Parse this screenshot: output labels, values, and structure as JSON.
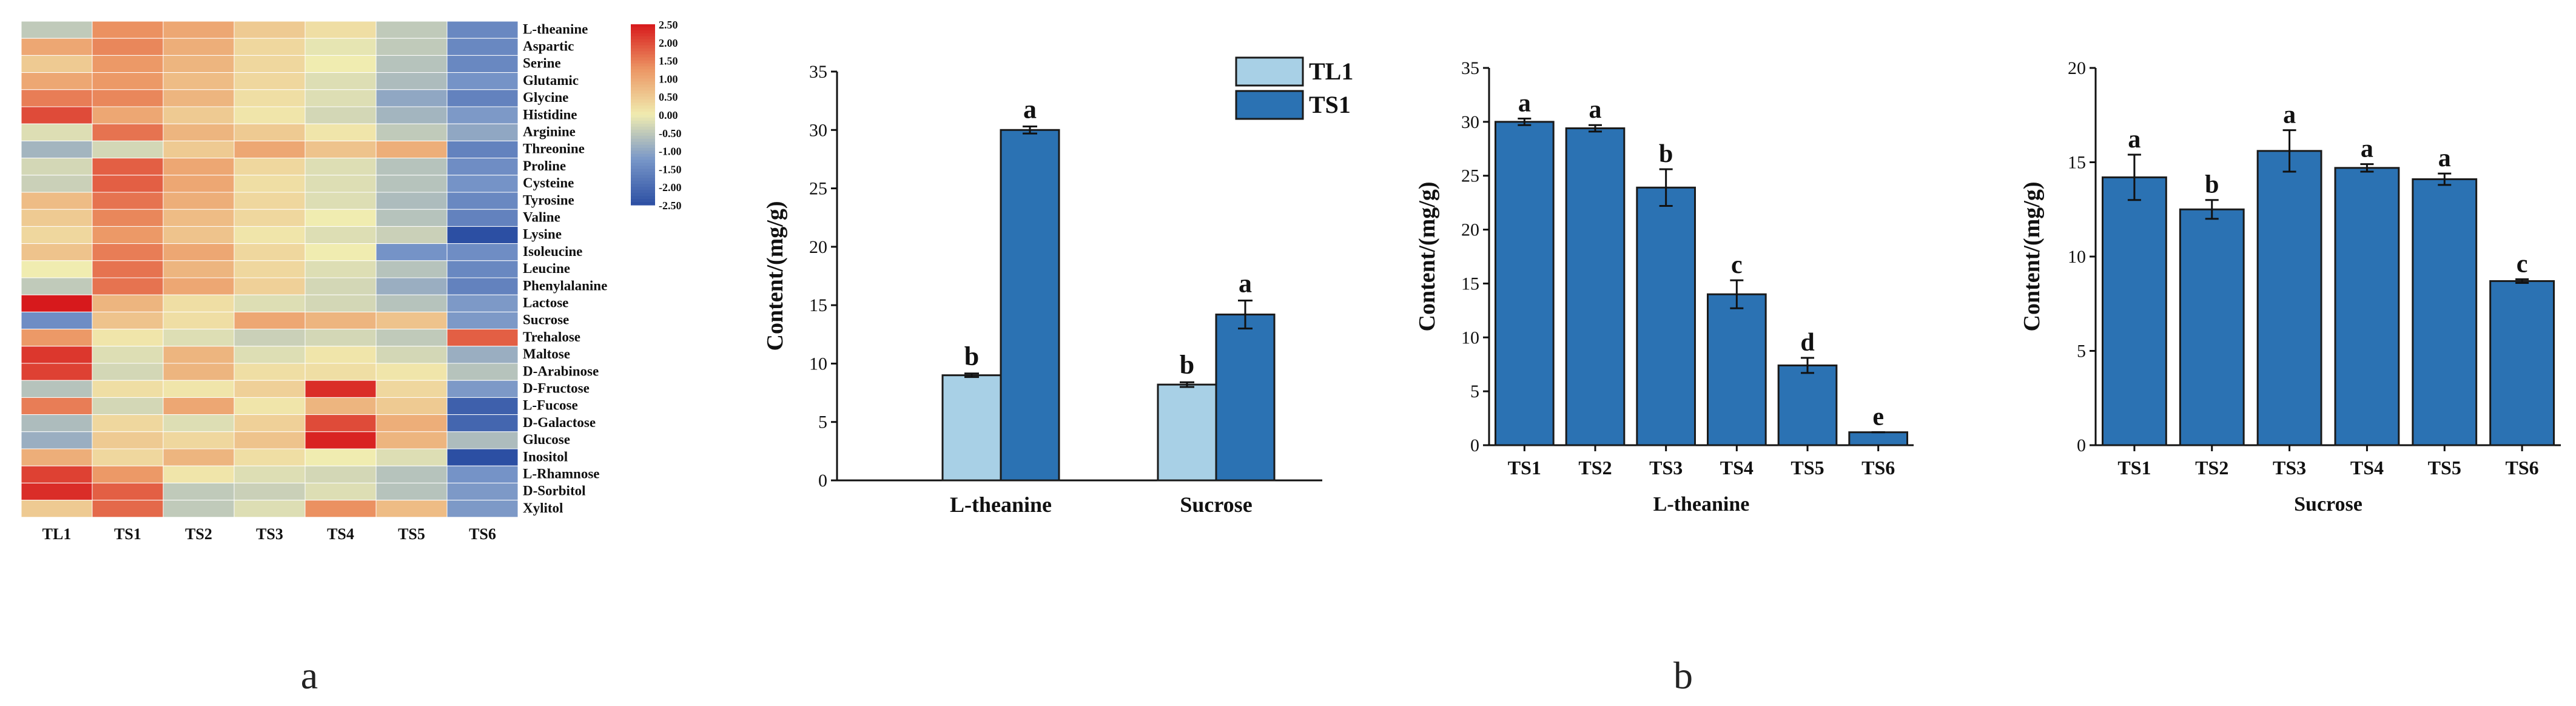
{
  "panel_labels": {
    "a": "a",
    "b": "b"
  },
  "colors": {
    "tl1": "#a8d0e6",
    "ts": "#2b72b3",
    "edge": "#1a1a1a",
    "heat_high": "#d7191c",
    "heat_mid": "#f0ecb0",
    "heat_low": "#2c4fa3"
  },
  "chart_data": [
    {
      "type": "heatmap",
      "columns": [
        "TL1",
        "TS1",
        "TS2",
        "TS3",
        "TS4",
        "TS5",
        "TS6"
      ],
      "rows": [
        "L-theanine",
        "Aspartic",
        "Serine",
        "Glutamic",
        "Glycine",
        "Histidine",
        "Arginine",
        "Threonine",
        "Proline",
        "Cysteine",
        "Tyrosine",
        "Valine",
        "Lysine",
        "Isoleucine",
        "Leucine",
        "Phenylalanine",
        "Lactose",
        "Sucrose",
        "Trehalose",
        "Maltose",
        "D-Arabinose",
        "D-Fructose",
        "L-Fucose",
        "D-Galactose",
        "Glucose",
        "Inositol",
        "L-Rhamnose",
        "D-Sorbitol",
        "Xylitol"
      ],
      "values": [
        [
          -0.5,
          1.3,
          1.0,
          0.5,
          0.2,
          -0.5,
          -1.5
        ],
        [
          1.0,
          1.4,
          0.9,
          0.3,
          -0.1,
          -0.5,
          -1.5
        ],
        [
          0.5,
          1.2,
          0.8,
          0.3,
          0.0,
          -0.6,
          -1.5
        ],
        [
          1.0,
          1.2,
          0.7,
          0.3,
          -0.2,
          -0.7,
          -1.3
        ],
        [
          1.5,
          1.4,
          0.8,
          0.2,
          -0.2,
          -1.0,
          -1.6
        ],
        [
          2.0,
          1.0,
          0.5,
          0.1,
          -0.3,
          -0.8,
          -1.2
        ],
        [
          -0.2,
          1.6,
          0.8,
          0.5,
          0.1,
          -0.5,
          -1.0
        ],
        [
          -0.8,
          -0.3,
          0.5,
          1.0,
          0.6,
          0.9,
          -1.6
        ],
        [
          -0.3,
          1.8,
          1.0,
          0.3,
          -0.2,
          -0.6,
          -1.4
        ],
        [
          -0.4,
          1.8,
          1.0,
          0.2,
          -0.2,
          -0.6,
          -1.3
        ],
        [
          0.7,
          1.6,
          0.9,
          0.3,
          -0.2,
          -0.7,
          -1.5
        ],
        [
          0.5,
          1.4,
          0.7,
          0.3,
          0.0,
          -0.6,
          -1.6
        ],
        [
          0.3,
          1.2,
          0.6,
          0.1,
          -0.2,
          -0.4,
          -2.5
        ],
        [
          0.6,
          1.5,
          1.0,
          0.3,
          0.0,
          -1.3,
          -1.4
        ],
        [
          0.0,
          1.6,
          0.8,
          0.3,
          -0.2,
          -0.6,
          -1.5
        ],
        [
          -0.5,
          1.6,
          1.0,
          0.4,
          -0.3,
          -0.9,
          -1.6
        ],
        [
          2.5,
          0.8,
          0.2,
          -0.2,
          -0.3,
          -0.6,
          -1.2
        ],
        [
          -1.4,
          0.6,
          0.2,
          1.0,
          0.8,
          0.6,
          -1.2
        ],
        [
          1.2,
          0.1,
          -0.2,
          -0.4,
          -0.3,
          -0.5,
          1.8
        ],
        [
          2.2,
          -0.2,
          0.8,
          -0.2,
          0.1,
          -0.3,
          -0.9
        ],
        [
          2.1,
          -0.3,
          0.8,
          0.2,
          0.2,
          0.1,
          -0.6
        ],
        [
          -0.6,
          0.2,
          0.1,
          0.4,
          2.3,
          0.3,
          -1.2
        ],
        [
          1.5,
          -0.3,
          1.0,
          0.1,
          0.8,
          0.5,
          -2.2
        ],
        [
          -0.7,
          0.3,
          -0.2,
          0.4,
          2.0,
          0.9,
          -2.1
        ],
        [
          -0.9,
          0.5,
          0.3,
          0.6,
          2.4,
          0.8,
          -0.7
        ],
        [
          0.9,
          0.3,
          0.8,
          0.2,
          0.0,
          -0.2,
          -2.5
        ],
        [
          2.1,
          1.2,
          0.1,
          -0.2,
          -0.3,
          -0.6,
          -1.3
        ],
        [
          2.3,
          1.8,
          -0.5,
          -0.4,
          -0.2,
          -0.6,
          -1.2
        ],
        [
          0.5,
          1.7,
          -0.5,
          -0.2,
          1.3,
          0.7,
          -1.2
        ]
      ],
      "colorbar": {
        "min": -2.5,
        "max": 2.5,
        "tick_labels": [
          "2.50",
          "2.00",
          "1.50",
          "1.00",
          "0.50",
          "0.00",
          "-0.50",
          "-1.00",
          "-1.50",
          "-2.00",
          "-2.50"
        ]
      }
    },
    {
      "type": "bar",
      "title": "",
      "categories": [
        "L-theanine",
        "Sucrose"
      ],
      "series": [
        {
          "name": "TL1",
          "values": [
            9.0,
            8.2
          ],
          "errors": [
            0.15,
            0.2
          ],
          "letters": [
            "b",
            "b"
          ]
        },
        {
          "name": "TS1",
          "values": [
            30.0,
            14.2
          ],
          "errors": [
            0.3,
            1.2
          ],
          "letters": [
            "a",
            "a"
          ]
        }
      ],
      "ylabel": "Content/(mg/g)",
      "xlabel": "",
      "ylim": [
        0,
        35
      ],
      "yticks": [
        "0",
        "5",
        "10",
        "15",
        "20",
        "25",
        "30",
        "35"
      ],
      "legend": "top-right"
    },
    {
      "type": "bar",
      "title": "",
      "categories": [
        "TS1",
        "TS2",
        "TS3",
        "TS4",
        "TS5",
        "TS6"
      ],
      "values": [
        30.0,
        29.4,
        23.9,
        14.0,
        7.4,
        1.2
      ],
      "errors": [
        0.3,
        0.3,
        1.7,
        1.3,
        0.7,
        0.0
      ],
      "letters": [
        "a",
        "a",
        "b",
        "c",
        "d",
        "e"
      ],
      "ylabel": "Content/(mg/g)",
      "xlabel": "L-theanine",
      "ylim": [
        0,
        35
      ],
      "yticks": [
        "0",
        "5",
        "10",
        "15",
        "20",
        "25",
        "30",
        "35"
      ]
    },
    {
      "type": "bar",
      "title": "",
      "categories": [
        "TS1",
        "TS2",
        "TS3",
        "TS4",
        "TS5",
        "TS6"
      ],
      "values": [
        14.2,
        12.5,
        15.6,
        14.7,
        14.1,
        8.7
      ],
      "errors": [
        1.2,
        0.5,
        1.1,
        0.2,
        0.3,
        0.1
      ],
      "letters": [
        "a",
        "b",
        "a",
        "a",
        "a",
        "c"
      ],
      "ylabel": "Content/(mg/g)",
      "xlabel": "Sucrose",
      "ylim": [
        0,
        20
      ],
      "yticks": [
        "0",
        "5",
        "10",
        "15",
        "20"
      ]
    }
  ]
}
